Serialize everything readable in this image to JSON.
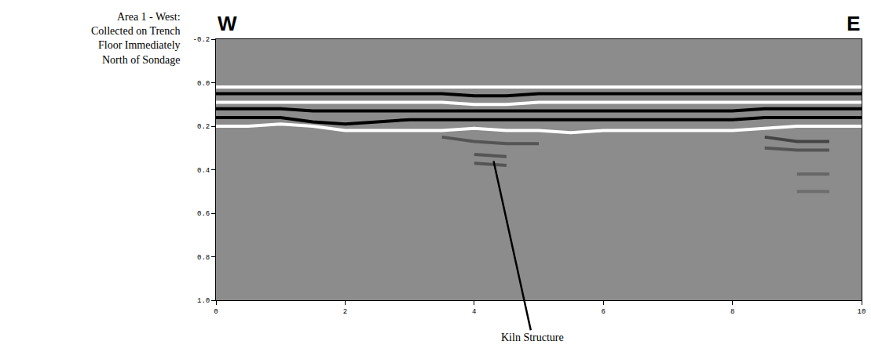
{
  "chart_data": {
    "type": "line",
    "ylabel": "Area 1 - West: Collected on Trench Floor Immediately North of Sondage",
    "side_labels": {
      "left": "W",
      "right": "E"
    },
    "annotations": [
      {
        "text": "Kiln Structure",
        "x": 4.3,
        "y": 0.36
      }
    ],
    "x": [
      0,
      0.5,
      1,
      1.5,
      2,
      2.5,
      3,
      3.5,
      4,
      4.5,
      5,
      5.5,
      6,
      6.5,
      7,
      7.5,
      8,
      8.5,
      9,
      9.5,
      10
    ],
    "series": [
      {
        "color": "#ffffff",
        "values": [
          0.02,
          0.02,
          0.02,
          0.02,
          0.02,
          0.02,
          0.02,
          0.02,
          0.02,
          0.02,
          0.02,
          0.02,
          0.02,
          0.02,
          0.02,
          0.02,
          0.02,
          0.02,
          0.02,
          0.02,
          0.02
        ]
      },
      {
        "color": "#000000",
        "values": [
          0.05,
          0.05,
          0.05,
          0.05,
          0.05,
          0.05,
          0.05,
          0.05,
          0.06,
          0.06,
          0.05,
          0.05,
          0.05,
          0.05,
          0.05,
          0.05,
          0.05,
          0.05,
          0.05,
          0.05,
          0.05
        ]
      },
      {
        "color": "#ffffff",
        "values": [
          0.09,
          0.09,
          0.09,
          0.09,
          0.09,
          0.09,
          0.09,
          0.09,
          0.1,
          0.1,
          0.09,
          0.09,
          0.09,
          0.09,
          0.09,
          0.09,
          0.09,
          0.09,
          0.09,
          0.09,
          0.09
        ]
      },
      {
        "color": "#000000",
        "values": [
          0.12,
          0.12,
          0.12,
          0.13,
          0.13,
          0.13,
          0.13,
          0.13,
          0.13,
          0.13,
          0.13,
          0.13,
          0.13,
          0.13,
          0.13,
          0.13,
          0.13,
          0.12,
          0.12,
          0.12,
          0.12
        ]
      },
      {
        "color": "#000000",
        "values": [
          0.16,
          0.16,
          0.16,
          0.18,
          0.19,
          0.18,
          0.17,
          0.17,
          0.17,
          0.17,
          0.17,
          0.17,
          0.17,
          0.17,
          0.17,
          0.17,
          0.17,
          0.16,
          0.16,
          0.16,
          0.16
        ]
      },
      {
        "color": "#ffffff",
        "values": [
          0.2,
          0.2,
          0.19,
          0.2,
          0.22,
          0.22,
          0.22,
          0.22,
          0.21,
          0.22,
          0.22,
          0.23,
          0.22,
          0.22,
          0.22,
          0.22,
          0.22,
          0.21,
          0.2,
          0.2,
          0.2
        ]
      },
      {
        "color": "#555555",
        "values": [
          null,
          null,
          null,
          null,
          null,
          null,
          null,
          0.25,
          0.27,
          0.28,
          0.28,
          null,
          null,
          null,
          null,
          null,
          null,
          null,
          null,
          null,
          null
        ]
      },
      {
        "color": "#555555",
        "values": [
          null,
          null,
          null,
          null,
          null,
          null,
          null,
          null,
          0.33,
          0.34,
          null,
          null,
          null,
          null,
          null,
          null,
          null,
          null,
          null,
          null,
          null
        ]
      },
      {
        "color": "#555555",
        "values": [
          null,
          null,
          null,
          null,
          null,
          null,
          null,
          null,
          0.37,
          0.38,
          null,
          null,
          null,
          null,
          null,
          null,
          null,
          null,
          null,
          null,
          null
        ]
      },
      {
        "color": "#444444",
        "values": [
          null,
          null,
          null,
          null,
          null,
          null,
          null,
          null,
          null,
          null,
          null,
          null,
          null,
          null,
          null,
          null,
          null,
          0.25,
          0.27,
          0.27,
          null
        ]
      },
      {
        "color": "#555555",
        "values": [
          null,
          null,
          null,
          null,
          null,
          null,
          null,
          null,
          null,
          null,
          null,
          null,
          null,
          null,
          null,
          null,
          null,
          0.3,
          0.31,
          0.31,
          null
        ]
      },
      {
        "color": "#666666",
        "values": [
          null,
          null,
          null,
          null,
          null,
          null,
          null,
          null,
          null,
          null,
          null,
          null,
          null,
          null,
          null,
          null,
          null,
          null,
          0.42,
          0.42,
          null
        ]
      },
      {
        "color": "#6e6e6e",
        "values": [
          null,
          null,
          null,
          null,
          null,
          null,
          null,
          null,
          null,
          null,
          null,
          null,
          null,
          null,
          null,
          null,
          null,
          null,
          0.5,
          0.5,
          null
        ]
      }
    ],
    "line_style": "solid",
    "xlim": [
      0,
      10
    ],
    "xticks": [
      0,
      2,
      4,
      6,
      8,
      10
    ],
    "ylim": [
      1.0,
      -0.2
    ],
    "yticks": [
      -0.2,
      {
        "value": 0,
        "label": "0.0"
      },
      0.2,
      0.4,
      0.6,
      0.8,
      {
        "value": 1,
        "label": "1.0"
      }
    ],
    "grid": false
  }
}
